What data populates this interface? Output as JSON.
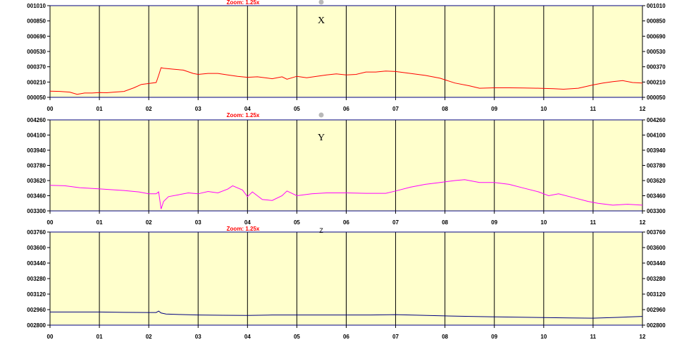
{
  "plot_background": "#ffffcc",
  "grid_color": "#000000",
  "x_tick_labels": [
    "00",
    "01",
    "02",
    "03",
    "04",
    "05",
    "06",
    "07",
    "08",
    "09",
    "10",
    "11",
    "12"
  ],
  "chart_data": [
    {
      "type": "line",
      "title": "X",
      "title_style": "serif-large",
      "zoom_label": "Zoom: 1.25x",
      "zoom_label_clipped": true,
      "show_marker": true,
      "color": "#ff0000",
      "xlim": [
        0,
        12
      ],
      "ylim": [
        50,
        1010
      ],
      "y_tick_labels": [
        "001010",
        "000850",
        "000690",
        "000530",
        "000370",
        "000210",
        "000050"
      ],
      "y_ticks": [
        1010,
        850,
        690,
        530,
        370,
        210,
        50
      ],
      "x": [
        0,
        0.2,
        0.4,
        0.55,
        0.7,
        0.85,
        1.0,
        1.15,
        1.3,
        1.5,
        1.7,
        1.85,
        2.0,
        2.15,
        2.2,
        2.25,
        2.3,
        2.5,
        2.7,
        2.9,
        3.0,
        3.2,
        3.4,
        3.6,
        3.8,
        4.0,
        4.2,
        4.5,
        4.7,
        4.8,
        5.0,
        5.2,
        5.4,
        5.6,
        5.8,
        6.0,
        6.2,
        6.4,
        6.6,
        6.8,
        7.0,
        7.3,
        7.6,
        7.9,
        8.2,
        8.5,
        8.7,
        9.0,
        9.3,
        9.6,
        9.9,
        10.2,
        10.4,
        10.7,
        11.0,
        11.2,
        11.4,
        11.6,
        11.8,
        12.0
      ],
      "y": [
        115,
        112,
        105,
        82,
        95,
        95,
        100,
        98,
        105,
        112,
        150,
        185,
        195,
        205,
        280,
        360,
        355,
        345,
        335,
        300,
        290,
        300,
        300,
        285,
        270,
        260,
        265,
        245,
        265,
        240,
        270,
        255,
        270,
        285,
        295,
        285,
        290,
        315,
        315,
        325,
        320,
        300,
        280,
        250,
        200,
        170,
        145,
        150,
        150,
        148,
        145,
        140,
        135,
        145,
        180,
        200,
        215,
        225,
        205,
        200
      ]
    },
    {
      "type": "line",
      "title": "Y",
      "title_style": "serif-large",
      "zoom_label": "Zoom: 1.25x",
      "show_marker": true,
      "color": "#ff00ff",
      "xlim": [
        0,
        12
      ],
      "ylim": [
        3300,
        4260
      ],
      "y_tick_labels": [
        "004260",
        "004100",
        "003940",
        "003780",
        "003620",
        "003460",
        "003300"
      ],
      "y_ticks": [
        4260,
        4100,
        3940,
        3780,
        3620,
        3460,
        3300
      ],
      "x": [
        0,
        0.3,
        0.6,
        0.9,
        1.2,
        1.5,
        1.8,
        2.0,
        2.15,
        2.2,
        2.25,
        2.3,
        2.4,
        2.6,
        2.8,
        3.0,
        3.2,
        3.4,
        3.6,
        3.7,
        3.9,
        4.0,
        4.1,
        4.3,
        4.5,
        4.7,
        4.8,
        5.0,
        5.3,
        5.6,
        6.0,
        6.4,
        6.8,
        7.0,
        7.3,
        7.6,
        7.9,
        8.2,
        8.4,
        8.7,
        9.0,
        9.3,
        9.6,
        9.9,
        10.1,
        10.3,
        10.6,
        10.9,
        11.1,
        11.4,
        11.7,
        12.0
      ],
      "y": [
        3570,
        3565,
        3545,
        3535,
        3525,
        3515,
        3500,
        3480,
        3480,
        3500,
        3320,
        3400,
        3450,
        3470,
        3490,
        3480,
        3505,
        3490,
        3530,
        3565,
        3520,
        3450,
        3500,
        3420,
        3410,
        3460,
        3510,
        3460,
        3480,
        3490,
        3490,
        3485,
        3485,
        3510,
        3550,
        3580,
        3600,
        3620,
        3630,
        3600,
        3600,
        3580,
        3540,
        3500,
        3460,
        3480,
        3440,
        3400,
        3380,
        3360,
        3370,
        3360
      ]
    },
    {
      "type": "line",
      "title": "Z",
      "title_style": "sans-small",
      "zoom_label": "Zoom: 1.25x",
      "show_marker": false,
      "color": "#000080",
      "xlim": [
        0,
        12
      ],
      "ylim": [
        2800,
        3760
      ],
      "y_tick_labels": [
        "003760",
        "003600",
        "003440",
        "003280",
        "003120",
        "002960",
        "002800"
      ],
      "y_ticks": [
        3760,
        3600,
        3440,
        3280,
        3120,
        2960,
        2800
      ],
      "x": [
        0,
        0.5,
        1.0,
        1.5,
        2.0,
        2.15,
        2.2,
        2.25,
        2.35,
        2.6,
        3.0,
        3.5,
        4.0,
        4.5,
        5.0,
        5.5,
        6.0,
        6.5,
        7.0,
        7.5,
        8.0,
        8.5,
        9.0,
        9.5,
        10.0,
        10.5,
        11.0,
        11.5,
        12.0
      ],
      "y": [
        2935,
        2935,
        2935,
        2932,
        2930,
        2930,
        2945,
        2925,
        2915,
        2910,
        2905,
        2902,
        2900,
        2905,
        2905,
        2905,
        2905,
        2905,
        2908,
        2902,
        2895,
        2890,
        2885,
        2882,
        2878,
        2875,
        2872,
        2880,
        2890
      ]
    }
  ]
}
